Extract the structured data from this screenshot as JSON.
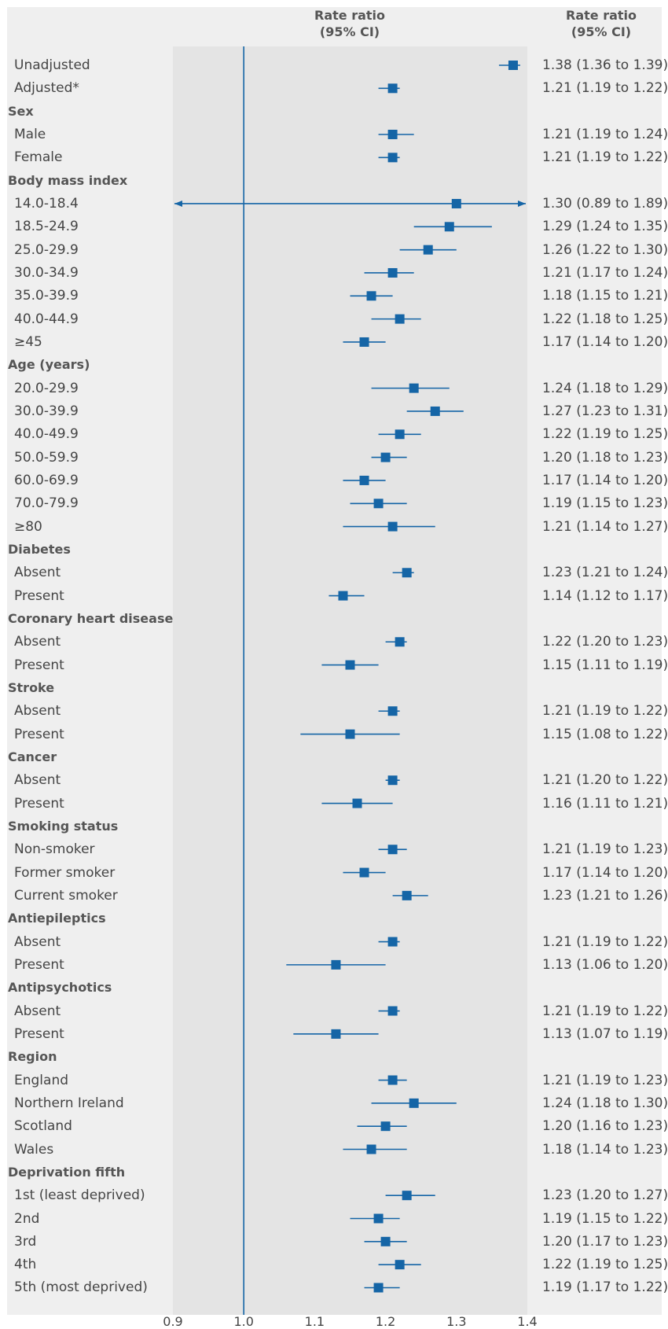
{
  "headers": {
    "plot": "Rate ratio\n(95% CI)",
    "ci": "Rate ratio\n(95% CI)"
  },
  "colors": {
    "marker": "#1565a6",
    "reference_line": "#1565a6",
    "panel": "#e4e4e4",
    "band": "#efefef"
  },
  "chart_data": {
    "type": "forest",
    "xlim": [
      0.9,
      1.4
    ],
    "xticks": [
      "0.9",
      "1.0",
      "1.1",
      "1.2",
      "1.3",
      "1.4"
    ],
    "reference_value": 1.0,
    "rows": [
      {
        "label": "Unadjusted",
        "group": false,
        "estimate": 1.38,
        "lower": 1.36,
        "upper": 1.39,
        "text": "1.38 (1.36 to 1.39)"
      },
      {
        "label": "Adjusted*",
        "group": false,
        "estimate": 1.21,
        "lower": 1.19,
        "upper": 1.22,
        "text": "1.21 (1.19 to 1.22)"
      },
      {
        "label": "Sex",
        "group": true
      },
      {
        "label": "Male",
        "group": false,
        "estimate": 1.21,
        "lower": 1.19,
        "upper": 1.24,
        "text": "1.21 (1.19 to 1.24)"
      },
      {
        "label": "Female",
        "group": false,
        "estimate": 1.21,
        "lower": 1.19,
        "upper": 1.22,
        "text": "1.21 (1.19 to 1.22)"
      },
      {
        "label": "Body mass index",
        "group": true
      },
      {
        "label": "14.0-18.4",
        "group": false,
        "estimate": 1.3,
        "lower": 0.89,
        "upper": 1.89,
        "text": "1.30 (0.89 to 1.89)"
      },
      {
        "label": "18.5-24.9",
        "group": false,
        "estimate": 1.29,
        "lower": 1.24,
        "upper": 1.35,
        "text": "1.29 (1.24 to 1.35)"
      },
      {
        "label": "25.0-29.9",
        "group": false,
        "estimate": 1.26,
        "lower": 1.22,
        "upper": 1.3,
        "text": "1.26 (1.22 to 1.30)"
      },
      {
        "label": "30.0-34.9",
        "group": false,
        "estimate": 1.21,
        "lower": 1.17,
        "upper": 1.24,
        "text": "1.21 (1.17 to 1.24)"
      },
      {
        "label": "35.0-39.9",
        "group": false,
        "estimate": 1.18,
        "lower": 1.15,
        "upper": 1.21,
        "text": "1.18 (1.15 to 1.21)"
      },
      {
        "label": "40.0-44.9",
        "group": false,
        "estimate": 1.22,
        "lower": 1.18,
        "upper": 1.25,
        "text": "1.22 (1.18 to 1.25)"
      },
      {
        "label": "≥45",
        "group": false,
        "estimate": 1.17,
        "lower": 1.14,
        "upper": 1.2,
        "text": "1.17 (1.14 to 1.20)"
      },
      {
        "label": "Age (years)",
        "group": true
      },
      {
        "label": "20.0-29.9",
        "group": false,
        "estimate": 1.24,
        "lower": 1.18,
        "upper": 1.29,
        "text": "1.24 (1.18 to 1.29)"
      },
      {
        "label": "30.0-39.9",
        "group": false,
        "estimate": 1.27,
        "lower": 1.23,
        "upper": 1.31,
        "text": "1.27 (1.23 to 1.31)"
      },
      {
        "label": "40.0-49.9",
        "group": false,
        "estimate": 1.22,
        "lower": 1.19,
        "upper": 1.25,
        "text": "1.22 (1.19 to 1.25)"
      },
      {
        "label": "50.0-59.9",
        "group": false,
        "estimate": 1.2,
        "lower": 1.18,
        "upper": 1.23,
        "text": "1.20 (1.18 to 1.23)"
      },
      {
        "label": "60.0-69.9",
        "group": false,
        "estimate": 1.17,
        "lower": 1.14,
        "upper": 1.2,
        "text": "1.17 (1.14 to 1.20)"
      },
      {
        "label": "70.0-79.9",
        "group": false,
        "estimate": 1.19,
        "lower": 1.15,
        "upper": 1.23,
        "text": "1.19 (1.15 to 1.23)"
      },
      {
        "label": "≥80",
        "group": false,
        "estimate": 1.21,
        "lower": 1.14,
        "upper": 1.27,
        "text": "1.21 (1.14 to 1.27)"
      },
      {
        "label": "Diabetes",
        "group": true
      },
      {
        "label": "Absent",
        "group": false,
        "estimate": 1.23,
        "lower": 1.21,
        "upper": 1.24,
        "text": "1.23 (1.21 to 1.24)"
      },
      {
        "label": "Present",
        "group": false,
        "estimate": 1.14,
        "lower": 1.12,
        "upper": 1.17,
        "text": "1.14 (1.12 to 1.17)"
      },
      {
        "label": "Coronary heart disease",
        "group": true
      },
      {
        "label": "Absent",
        "group": false,
        "estimate": 1.22,
        "lower": 1.2,
        "upper": 1.23,
        "text": "1.22 (1.20 to 1.23)"
      },
      {
        "label": "Present",
        "group": false,
        "estimate": 1.15,
        "lower": 1.11,
        "upper": 1.19,
        "text": "1.15 (1.11 to 1.19)"
      },
      {
        "label": "Stroke",
        "group": true
      },
      {
        "label": "Absent",
        "group": false,
        "estimate": 1.21,
        "lower": 1.19,
        "upper": 1.22,
        "text": "1.21 (1.19 to 1.22)"
      },
      {
        "label": "Present",
        "group": false,
        "estimate": 1.15,
        "lower": 1.08,
        "upper": 1.22,
        "text": "1.15 (1.08 to 1.22)"
      },
      {
        "label": "Cancer",
        "group": true
      },
      {
        "label": "Absent",
        "group": false,
        "estimate": 1.21,
        "lower": 1.2,
        "upper": 1.22,
        "text": "1.21 (1.20 to 1.22)"
      },
      {
        "label": "Present",
        "group": false,
        "estimate": 1.16,
        "lower": 1.11,
        "upper": 1.21,
        "text": "1.16 (1.11 to 1.21)"
      },
      {
        "label": "Smoking status",
        "group": true
      },
      {
        "label": "Non-smoker",
        "group": false,
        "estimate": 1.21,
        "lower": 1.19,
        "upper": 1.23,
        "text": "1.21 (1.19 to 1.23)"
      },
      {
        "label": "Former smoker",
        "group": false,
        "estimate": 1.17,
        "lower": 1.14,
        "upper": 1.2,
        "text": "1.17 (1.14 to 1.20)"
      },
      {
        "label": "Current smoker",
        "group": false,
        "estimate": 1.23,
        "lower": 1.21,
        "upper": 1.26,
        "text": "1.23 (1.21 to 1.26)"
      },
      {
        "label": "Antiepileptics",
        "group": true
      },
      {
        "label": "Absent",
        "group": false,
        "estimate": 1.21,
        "lower": 1.19,
        "upper": 1.22,
        "text": "1.21 (1.19 to 1.22)"
      },
      {
        "label": "Present",
        "group": false,
        "estimate": 1.13,
        "lower": 1.06,
        "upper": 1.2,
        "text": "1.13 (1.06 to 1.20)"
      },
      {
        "label": "Antipsychotics",
        "group": true
      },
      {
        "label": "Absent",
        "group": false,
        "estimate": 1.21,
        "lower": 1.19,
        "upper": 1.22,
        "text": "1.21 (1.19 to 1.22)"
      },
      {
        "label": "Present",
        "group": false,
        "estimate": 1.13,
        "lower": 1.07,
        "upper": 1.19,
        "text": "1.13 (1.07 to 1.19)"
      },
      {
        "label": "Region",
        "group": true
      },
      {
        "label": "England",
        "group": false,
        "estimate": 1.21,
        "lower": 1.19,
        "upper": 1.23,
        "text": "1.21 (1.19 to 1.23)"
      },
      {
        "label": "Northern Ireland",
        "group": false,
        "estimate": 1.24,
        "lower": 1.18,
        "upper": 1.3,
        "text": "1.24 (1.18 to 1.30)"
      },
      {
        "label": "Scotland",
        "group": false,
        "estimate": 1.2,
        "lower": 1.16,
        "upper": 1.23,
        "text": "1.20 (1.16 to 1.23)"
      },
      {
        "label": "Wales",
        "group": false,
        "estimate": 1.18,
        "lower": 1.14,
        "upper": 1.23,
        "text": "1.18 (1.14 to 1.23)"
      },
      {
        "label": "Deprivation fifth",
        "group": true
      },
      {
        "label": "1st (least deprived)",
        "group": false,
        "estimate": 1.23,
        "lower": 1.2,
        "upper": 1.27,
        "text": "1.23 (1.20 to 1.27)"
      },
      {
        "label": "2nd",
        "group": false,
        "estimate": 1.19,
        "lower": 1.15,
        "upper": 1.22,
        "text": "1.19 (1.15 to 1.22)"
      },
      {
        "label": "3rd",
        "group": false,
        "estimate": 1.2,
        "lower": 1.17,
        "upper": 1.23,
        "text": "1.20 (1.17 to 1.23)"
      },
      {
        "label": "4th",
        "group": false,
        "estimate": 1.22,
        "lower": 1.19,
        "upper": 1.25,
        "text": "1.22 (1.19 to 1.25)"
      },
      {
        "label": "5th (most deprived)",
        "group": false,
        "estimate": 1.19,
        "lower": 1.17,
        "upper": 1.22,
        "text": "1.19 (1.17 to 1.22)"
      }
    ]
  }
}
